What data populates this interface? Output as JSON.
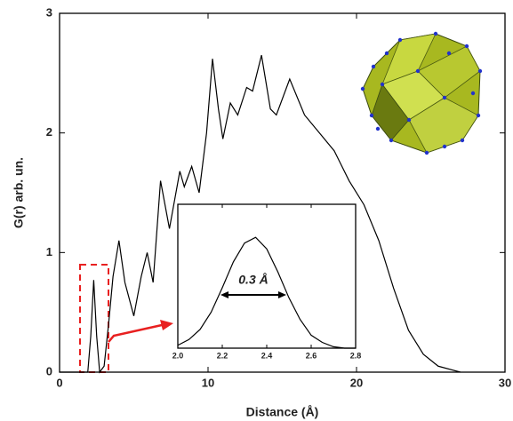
{
  "chart_data": [
    {
      "type": "line",
      "xlabel": "Distance (Å)",
      "ylabel": "G(r) arb. un.",
      "color": "#000000",
      "xlim": [
        0,
        30
      ],
      "ylim": [
        0,
        3
      ],
      "xticks": [
        0,
        10,
        20,
        30
      ],
      "yticks": [
        0,
        1,
        2,
        3
      ],
      "x": [
        0,
        1.9,
        2.1,
        2.3,
        2.5,
        2.7,
        3.0,
        3.3,
        3.6,
        4.0,
        4.4,
        5.0,
        5.5,
        5.9,
        6.3,
        6.8,
        7.4,
        8.1,
        8.4,
        8.9,
        9.4,
        9.9,
        10.3,
        10.7,
        11.0,
        11.5,
        12.0,
        12.6,
        13.0,
        13.6,
        14.2,
        14.6,
        15.5,
        16.5,
        17.5,
        18.5,
        19.5,
        20.5,
        21.5,
        22.5,
        23.5,
        24.5,
        25.5,
        27.0
      ],
      "values": [
        0,
        0,
        0.3,
        0.77,
        0.3,
        0,
        0.05,
        0.4,
        0.8,
        1.1,
        0.75,
        0.47,
        0.8,
        1.0,
        0.75,
        1.6,
        1.2,
        1.68,
        1.55,
        1.72,
        1.5,
        2.0,
        2.62,
        2.2,
        1.95,
        2.25,
        2.15,
        2.38,
        2.35,
        2.65,
        2.2,
        2.15,
        2.45,
        2.15,
        2.0,
        1.85,
        1.6,
        1.4,
        1.1,
        0.7,
        0.35,
        0.15,
        0.05,
        0
      ]
    },
    {
      "type": "line",
      "color": "#000000",
      "annotation": "0.3 Å",
      "xlim": [
        2.0,
        2.8
      ],
      "ylim": [
        0,
        1
      ],
      "xticks": [
        {
          "value": 2.0,
          "label": "2.0"
        },
        2.2,
        2.4,
        2.6,
        {
          "value": 2.8,
          "label": "2.8"
        }
      ],
      "x": [
        2.0,
        2.05,
        2.1,
        2.15,
        2.2,
        2.25,
        2.3,
        2.35,
        2.4,
        2.45,
        2.5,
        2.55,
        2.6,
        2.65,
        2.7,
        2.75,
        2.8
      ],
      "values": [
        0.02,
        0.06,
        0.13,
        0.25,
        0.42,
        0.6,
        0.73,
        0.77,
        0.69,
        0.53,
        0.35,
        0.2,
        0.09,
        0.04,
        0.01,
        0,
        0
      ]
    }
  ]
}
